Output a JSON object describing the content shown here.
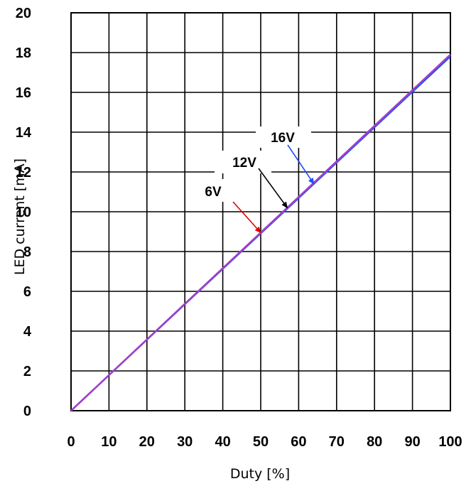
{
  "chart_data": {
    "type": "line",
    "xlabel": "Duty [%]",
    "ylabel": "LED current [mA]",
    "xlim": [
      0,
      100
    ],
    "ylim": [
      0,
      20
    ],
    "xticks": [
      "0",
      "10",
      "20",
      "30",
      "40",
      "50",
      "60",
      "70",
      "80",
      "90",
      "100"
    ],
    "yticks": [
      "0",
      "2",
      "4",
      "6",
      "8",
      "10",
      "12",
      "14",
      "16",
      "18",
      "20"
    ],
    "grid": true,
    "series": [
      {
        "name": "6V",
        "color": "#e00000",
        "x": [
          0,
          100
        ],
        "y": [
          0,
          17.9
        ]
      },
      {
        "name": "12V",
        "color": "#000000",
        "x": [
          0,
          100
        ],
        "y": [
          0,
          17.85
        ]
      },
      {
        "name": "16V",
        "color": "#1f4fff",
        "x": [
          0,
          100
        ],
        "y": [
          0,
          17.8
        ]
      }
    ],
    "overlay_line": {
      "color": "#a040c8",
      "x": [
        0,
        100
      ],
      "y": [
        0,
        17.9
      ]
    },
    "annotations": [
      {
        "text": "6V",
        "color": "#e00000",
        "arrow_to": [
          50,
          8.95
        ]
      },
      {
        "text": "12V",
        "color": "#000000",
        "arrow_to": [
          57,
          10.2
        ]
      },
      {
        "text": "16V",
        "color": "#1f4fff",
        "arrow_to": [
          64,
          11.4
        ]
      }
    ]
  }
}
